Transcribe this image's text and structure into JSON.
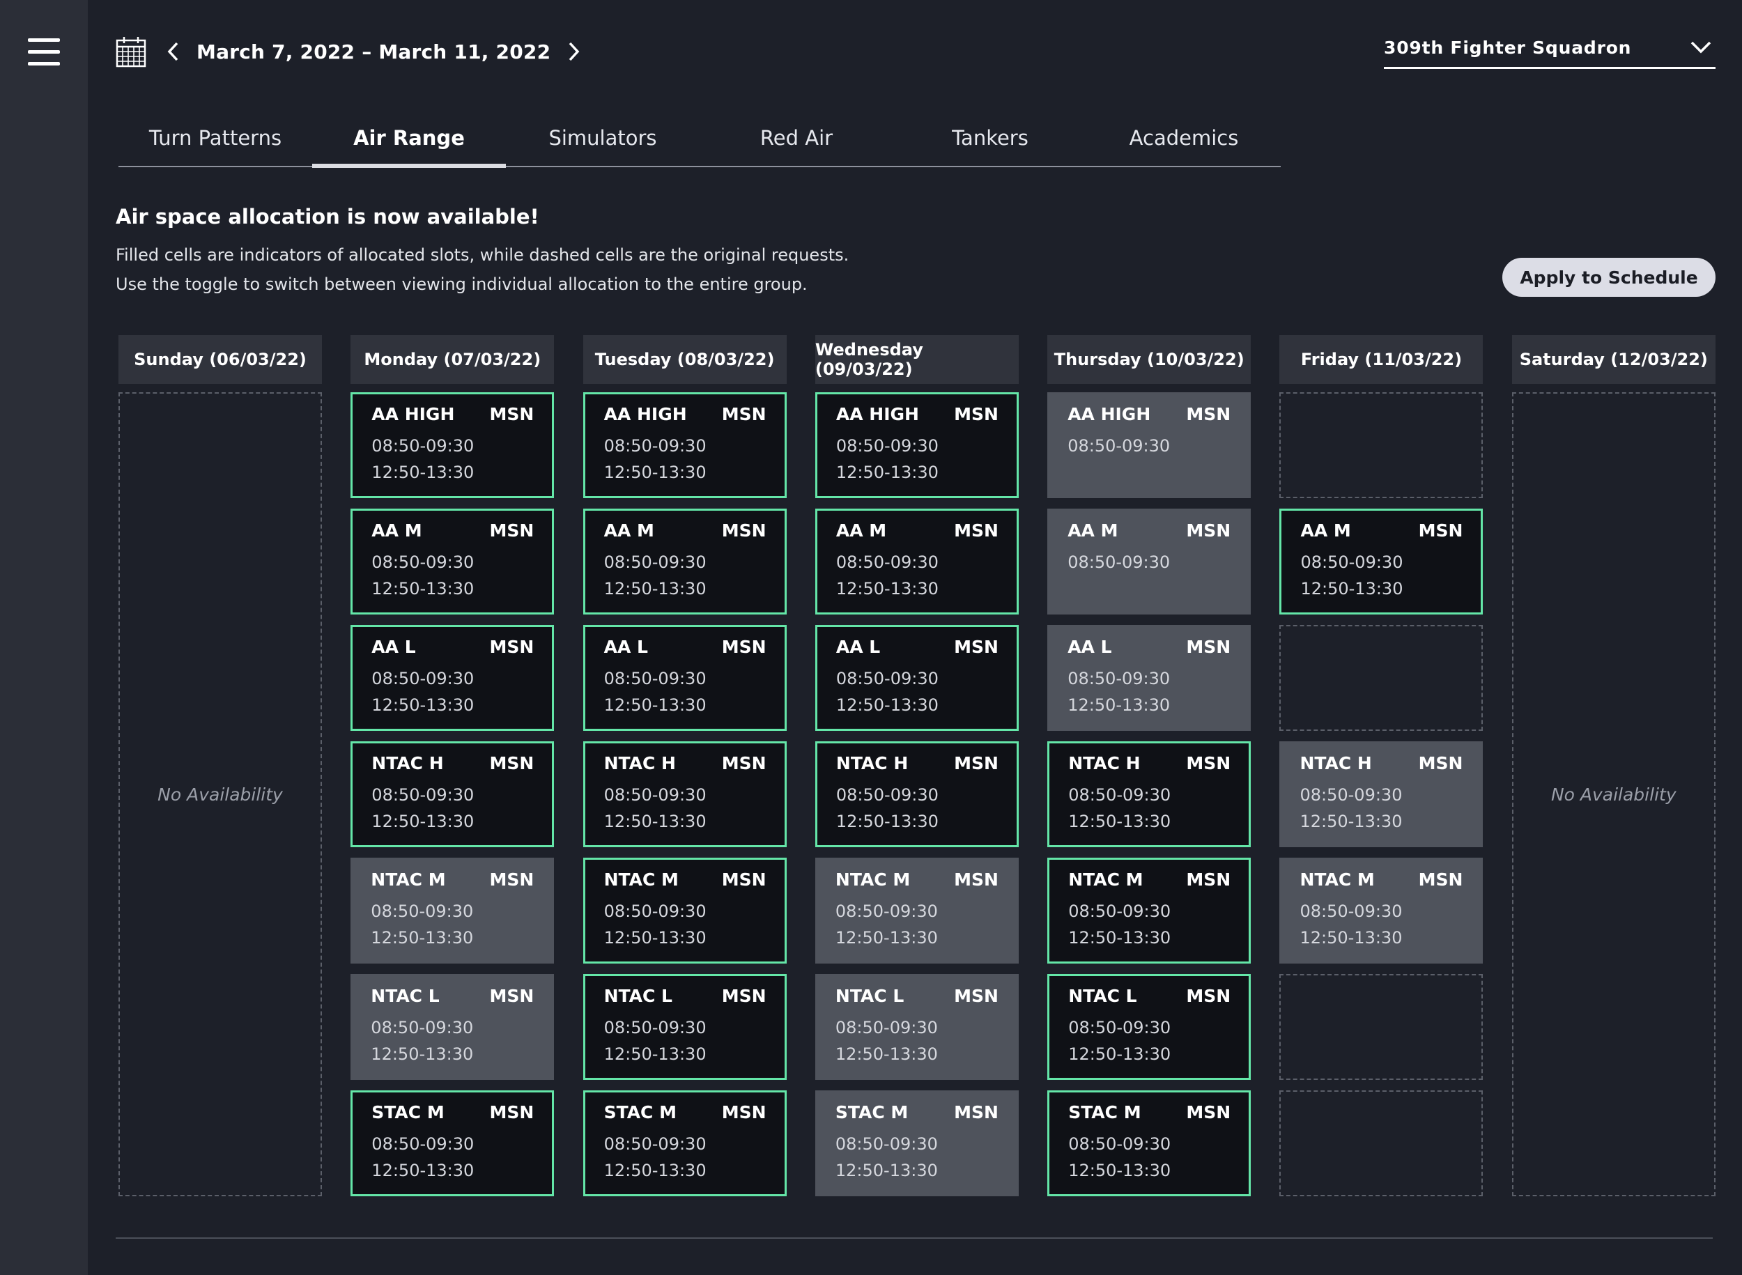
{
  "nav": {
    "menu_icon": "hamburger-icon"
  },
  "header": {
    "calendar_icon": "calendar-icon",
    "date_range": "March 7, 2022 – March 11, 2022",
    "squadron": "309th Fighter Squadron"
  },
  "tabs": [
    {
      "label": "Turn Patterns",
      "active": false
    },
    {
      "label": "Air Range",
      "active": true
    },
    {
      "label": "Simulators",
      "active": false
    },
    {
      "label": "Red Air",
      "active": false
    },
    {
      "label": "Tankers",
      "active": false
    },
    {
      "label": "Academics",
      "active": false
    }
  ],
  "notice": {
    "title": "Air space allocation is now available!",
    "line1": "Filled cells are indicators of allocated slots, while dashed cells are the original requests.",
    "line2": "Use the toggle to switch between viewing individual allocation to the entire group."
  },
  "apply_button": "Apply to Schedule",
  "colors": {
    "background": "#1d2029",
    "rail": "#2b2e37",
    "allocated_border": "#64e6a8",
    "allocated_fill": "#0f1116",
    "requested_fill": "#4f535c",
    "header_fill": "#30333c"
  },
  "days": [
    {
      "label": "Sunday (06/03/22)",
      "no_availability": "No Availability",
      "slots": []
    },
    {
      "label": "Monday (07/03/22)",
      "slots": [
        {
          "name": "AA HIGH",
          "type": "MSN",
          "times": [
            "08:50-09:30",
            "12:50-13:30"
          ],
          "state": "allocated"
        },
        {
          "name": "AA M",
          "type": "MSN",
          "times": [
            "08:50-09:30",
            "12:50-13:30"
          ],
          "state": "allocated"
        },
        {
          "name": "AA L",
          "type": "MSN",
          "times": [
            "08:50-09:30",
            "12:50-13:30"
          ],
          "state": "allocated"
        },
        {
          "name": "NTAC H",
          "type": "MSN",
          "times": [
            "08:50-09:30",
            "12:50-13:30"
          ],
          "state": "allocated"
        },
        {
          "name": "NTAC M",
          "type": "MSN",
          "times": [
            "08:50-09:30",
            "12:50-13:30"
          ],
          "state": "requested"
        },
        {
          "name": "NTAC L",
          "type": "MSN",
          "times": [
            "08:50-09:30",
            "12:50-13:30"
          ],
          "state": "requested"
        },
        {
          "name": "STAC M",
          "type": "MSN",
          "times": [
            "08:50-09:30",
            "12:50-13:30"
          ],
          "state": "allocated"
        }
      ]
    },
    {
      "label": "Tuesday (08/03/22)",
      "slots": [
        {
          "name": "AA HIGH",
          "type": "MSN",
          "times": [
            "08:50-09:30",
            "12:50-13:30"
          ],
          "state": "allocated"
        },
        {
          "name": "AA M",
          "type": "MSN",
          "times": [
            "08:50-09:30",
            "12:50-13:30"
          ],
          "state": "allocated"
        },
        {
          "name": "AA L",
          "type": "MSN",
          "times": [
            "08:50-09:30",
            "12:50-13:30"
          ],
          "state": "allocated"
        },
        {
          "name": "NTAC H",
          "type": "MSN",
          "times": [
            "08:50-09:30",
            "12:50-13:30"
          ],
          "state": "allocated"
        },
        {
          "name": "NTAC M",
          "type": "MSN",
          "times": [
            "08:50-09:30",
            "12:50-13:30"
          ],
          "state": "allocated"
        },
        {
          "name": "NTAC L",
          "type": "MSN",
          "times": [
            "08:50-09:30",
            "12:50-13:30"
          ],
          "state": "allocated"
        },
        {
          "name": "STAC M",
          "type": "MSN",
          "times": [
            "08:50-09:30",
            "12:50-13:30"
          ],
          "state": "allocated"
        }
      ]
    },
    {
      "label": "Wednesday (09/03/22)",
      "slots": [
        {
          "name": "AA HIGH",
          "type": "MSN",
          "times": [
            "08:50-09:30",
            "12:50-13:30"
          ],
          "state": "allocated"
        },
        {
          "name": "AA M",
          "type": "MSN",
          "times": [
            "08:50-09:30",
            "12:50-13:30"
          ],
          "state": "allocated"
        },
        {
          "name": "AA L",
          "type": "MSN",
          "times": [
            "08:50-09:30",
            "12:50-13:30"
          ],
          "state": "allocated"
        },
        {
          "name": "NTAC H",
          "type": "MSN",
          "times": [
            "08:50-09:30",
            "12:50-13:30"
          ],
          "state": "allocated"
        },
        {
          "name": "NTAC M",
          "type": "MSN",
          "times": [
            "08:50-09:30",
            "12:50-13:30"
          ],
          "state": "requested"
        },
        {
          "name": "NTAC L",
          "type": "MSN",
          "times": [
            "08:50-09:30",
            "12:50-13:30"
          ],
          "state": "requested"
        },
        {
          "name": "STAC M",
          "type": "MSN",
          "times": [
            "08:50-09:30",
            "12:50-13:30"
          ],
          "state": "requested"
        }
      ]
    },
    {
      "label": "Thursday (10/03/22)",
      "slots": [
        {
          "name": "AA HIGH",
          "type": "MSN",
          "times": [
            "08:50-09:30"
          ],
          "state": "requested"
        },
        {
          "name": "AA M",
          "type": "MSN",
          "times": [
            "08:50-09:30"
          ],
          "state": "requested"
        },
        {
          "name": "AA L",
          "type": "MSN",
          "times": [
            "08:50-09:30",
            "12:50-13:30"
          ],
          "state": "requested"
        },
        {
          "name": "NTAC H",
          "type": "MSN",
          "times": [
            "08:50-09:30",
            "12:50-13:30"
          ],
          "state": "allocated"
        },
        {
          "name": "NTAC M",
          "type": "MSN",
          "times": [
            "08:50-09:30",
            "12:50-13:30"
          ],
          "state": "allocated"
        },
        {
          "name": "NTAC L",
          "type": "MSN",
          "times": [
            "08:50-09:30",
            "12:50-13:30"
          ],
          "state": "allocated"
        },
        {
          "name": "STAC M",
          "type": "MSN",
          "times": [
            "08:50-09:30",
            "12:50-13:30"
          ],
          "state": "allocated"
        }
      ]
    },
    {
      "label": "Friday (11/03/22)",
      "slots": [
        {
          "state": "empty"
        },
        {
          "name": "AA M",
          "type": "MSN",
          "times": [
            "08:50-09:30",
            "12:50-13:30"
          ],
          "state": "allocated"
        },
        {
          "state": "empty"
        },
        {
          "name": "NTAC H",
          "type": "MSN",
          "times": [
            "08:50-09:30",
            "12:50-13:30"
          ],
          "state": "requested"
        },
        {
          "name": "NTAC M",
          "type": "MSN",
          "times": [
            "08:50-09:30",
            "12:50-13:30"
          ],
          "state": "requested"
        },
        {
          "state": "empty"
        },
        {
          "state": "empty"
        }
      ]
    },
    {
      "label": "Saturday (12/03/22)",
      "no_availability": "No Availability",
      "slots": []
    }
  ]
}
